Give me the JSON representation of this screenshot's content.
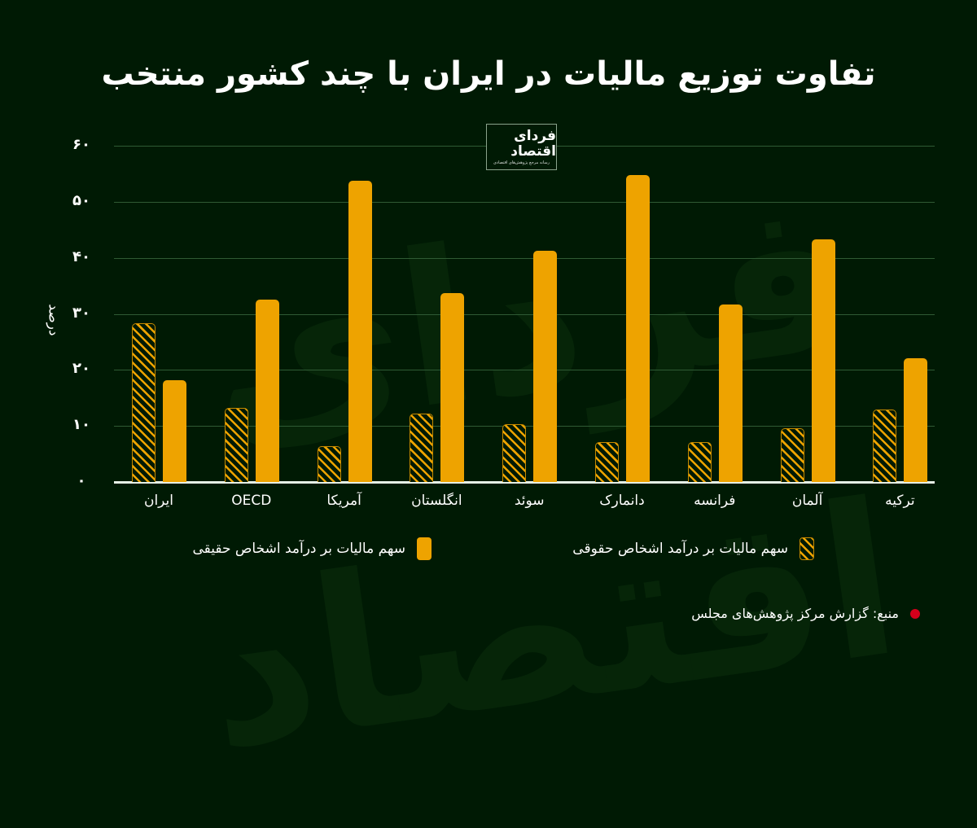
{
  "title": "تفاوت توزیع مالیات در ایران با چند کشور منتخب",
  "logo": {
    "main": "فردای اقتصاد",
    "sub": "رسانه مرجع پژوهش‌های اقتصادی"
  },
  "axis": {
    "y_label": "درصد",
    "y_ticks": [
      "۰",
      "۱۰",
      "۲۰",
      "۳۰",
      "۴۰",
      "۵۰",
      "۶۰"
    ]
  },
  "legend": {
    "solid": "سهم مالیات بر درآمد اشخاص حقیقی",
    "hatch": "سهم مالیات بر درآمد اشخاص حقوقی"
  },
  "source": "منبع: گزارش مرکز پژوهش‌های مجلس",
  "colors": {
    "background": "#001a04",
    "bar": "#eea300",
    "source_dot": "#d3001b",
    "grid": "#2f5a34"
  },
  "chart_data": {
    "type": "bar",
    "title": "تفاوت توزیع مالیات در ایران با چند کشور منتخب",
    "xlabel": "",
    "ylabel": "درصد",
    "ylim": [
      0,
      60
    ],
    "grid": true,
    "legend_position": "bottom",
    "categories": [
      "ایران",
      "OECD",
      "آمریکا",
      "انگلستان",
      "سوئد",
      "دانمارک",
      "فرانسه",
      "آلمان",
      "ترکیه"
    ],
    "series": [
      {
        "name": "سهم مالیات بر درآمد اشخاص حقوقی",
        "style": "hatched",
        "values": [
          28.3,
          13.2,
          6.4,
          12.2,
          10.3,
          7.1,
          7.1,
          9.6,
          12.9
        ]
      },
      {
        "name": "سهم مالیات بر درآمد اشخاص حقیقی",
        "style": "solid",
        "values": [
          18.2,
          32.6,
          53.8,
          33.7,
          41.3,
          54.8,
          31.7,
          43.3,
          22.1
        ]
      }
    ]
  }
}
